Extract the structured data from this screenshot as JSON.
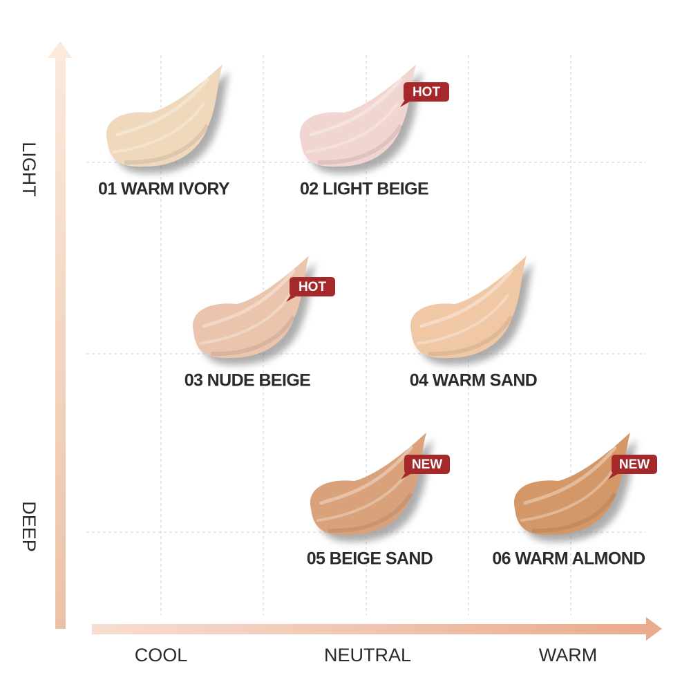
{
  "axes": {
    "vertical": {
      "top": "LIGHT",
      "bottom": "DEEP"
    },
    "horizontal": [
      "COOL",
      "NEUTRAL",
      "WARM"
    ]
  },
  "shades": [
    {
      "name": "01 WARM IVORY",
      "color": "#efd8bb"
    },
    {
      "name": "02 LIGHT BEIGE",
      "color": "#f0d5d0",
      "badge": "HOT"
    },
    {
      "name": "03 NUDE BEIGE",
      "color": "#eac4ad",
      "badge": "HOT"
    },
    {
      "name": "04 WARM SAND",
      "color": "#f0c8a6"
    },
    {
      "name": "05 BEIGE SAND",
      "color": "#d9a27b",
      "badge": "NEW"
    },
    {
      "name": "06 WARM ALMOND",
      "color": "#d49868",
      "badge": "NEW"
    }
  ]
}
